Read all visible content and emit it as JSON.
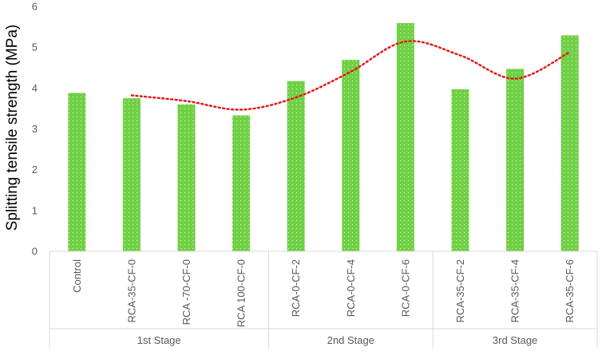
{
  "chart_data": {
    "type": "bar",
    "title": "",
    "xlabel": "",
    "ylabel": "Splitting tensile strength (MPa)",
    "ylim": [
      0,
      6
    ],
    "yticks": [
      0,
      1,
      2,
      3,
      4,
      5,
      6
    ],
    "grid": false,
    "legend": "none",
    "categories": [
      "Control",
      "RCA-35-CF-0",
      "RCA -70-CF-0",
      "RCA 100-CF-0",
      "RCA-0-CF-2",
      "RCA-0-CF-4",
      "RCA-0-CF-6",
      "RCA-35-CF-2",
      "RCA-35-CF-4",
      "RCA-35-CF-6"
    ],
    "groups": [
      {
        "label": "1st Stage",
        "categories": [
          "Control",
          "RCA-35-CF-0",
          "RCA -70-CF-0",
          "RCA 100-CF-0"
        ]
      },
      {
        "label": "2nd Stage",
        "categories": [
          "RCA-0-CF-2",
          "RCA-0-CF-4",
          "RCA-0-CF-6"
        ]
      },
      {
        "label": "3rd Stage",
        "categories": [
          "RCA-35-CF-2",
          "RCA-35-CF-4",
          "RCA-35-CF-6"
        ]
      }
    ],
    "series": [
      {
        "type": "bar",
        "values": [
          3.88,
          3.75,
          3.6,
          3.33,
          4.17,
          4.69,
          5.59,
          3.97,
          4.47,
          5.29
        ],
        "color": "#70d044"
      },
      {
        "type": "line",
        "style": "dotted",
        "color": "#e31a1c",
        "points": [
          {
            "category": "RCA-35-CF-0",
            "value": 3.82
          },
          {
            "category": "RCA -70-CF-0",
            "value": 3.68
          },
          {
            "category": "RCA 100-CF-0",
            "value": 3.47
          },
          {
            "category": "RCA-0-CF-2",
            "value": 3.77
          },
          {
            "category": "RCA-0-CF-4",
            "value": 4.4
          },
          {
            "category": "RCA-0-CF-6",
            "value": 5.14
          },
          {
            "category": "RCA-35-CF-2",
            "value": 4.8
          },
          {
            "category": "RCA-35-CF-4",
            "value": 4.23
          },
          {
            "category": "RCA-35-CF-6",
            "value": 4.88
          }
        ]
      }
    ]
  }
}
